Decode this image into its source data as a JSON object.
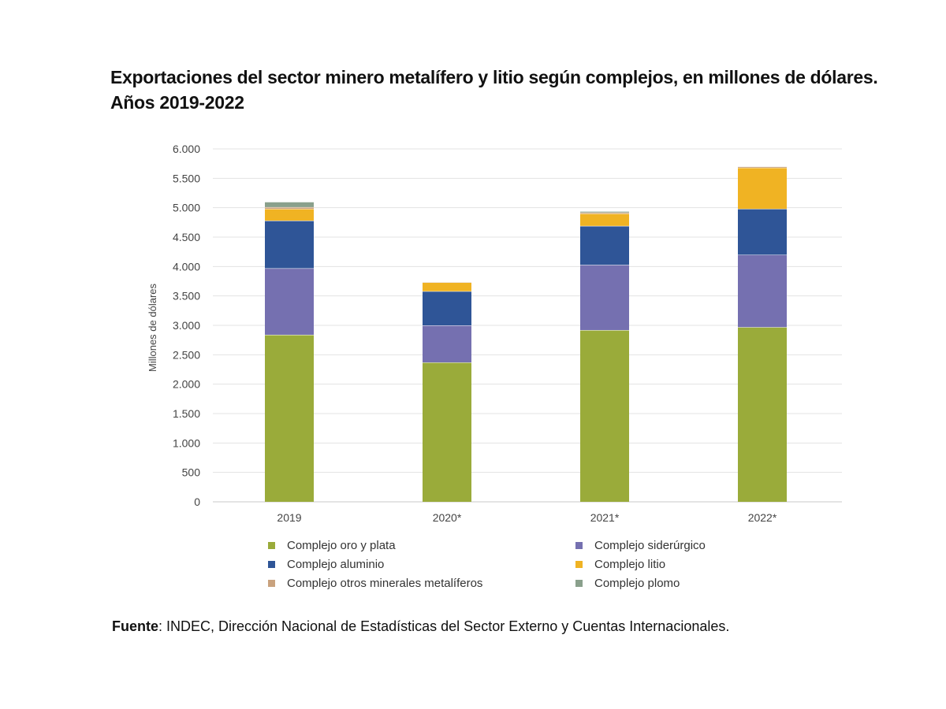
{
  "title_line1": "Exportaciones del sector minero metalífero y litio según complejos, en millones de dólares.",
  "title_line2": "Años 2019-2022",
  "source_label": "Fuente",
  "source_text": ": INDEC, Dirección Nacional de Estadísticas del Sector Externo y Cuentas Internacionales.",
  "chart_data": {
    "type": "bar",
    "stacked": true,
    "title": "Exportaciones del sector minero metalífero y litio según complejos, en millones de dólares. Años 2019-2022",
    "categories": [
      "2019",
      "2020*",
      "2021*",
      "2022*"
    ],
    "xlabel": "",
    "ylabel": "Millones de dólares",
    "ylim": [
      0,
      6000
    ],
    "yticks": [
      0,
      500,
      1000,
      1500,
      2000,
      2500,
      3000,
      3500,
      4000,
      4500,
      5000,
      5500,
      6000
    ],
    "ytick_labels": [
      "0",
      "500",
      "1.000",
      "1.500",
      "2.000",
      "2.500",
      "3.000",
      "3.500",
      "4.000",
      "4.500",
      "5.000",
      "5.500",
      "6.000"
    ],
    "grid": true,
    "legend_position": "bottom",
    "series": [
      {
        "name": "Complejo oro y plata",
        "color": "#9aab3a",
        "values": [
          2840,
          2370,
          2920,
          2970
        ]
      },
      {
        "name": "Complejo siderúrgico",
        "color": "#7570b0",
        "values": [
          1130,
          630,
          1110,
          1230
        ]
      },
      {
        "name": "Complejo aluminio",
        "color": "#2f5597",
        "values": [
          810,
          580,
          660,
          780
        ]
      },
      {
        "name": "Complejo litio",
        "color": "#f0b323",
        "values": [
          200,
          150,
          210,
          700
        ]
      },
      {
        "name": "Complejo otros minerales metalíferos",
        "color": "#c9a27e",
        "values": [
          30,
          10,
          20,
          20
        ]
      },
      {
        "name": "Complejo plomo",
        "color": "#8aa08c",
        "values": [
          90,
          0,
          20,
          0
        ]
      }
    ],
    "legend_order": [
      "Complejo oro y plata",
      "Complejo siderúrgico",
      "Complejo aluminio",
      "Complejo litio",
      "Complejo otros minerales metalíferos",
      "Complejo plomo"
    ]
  }
}
